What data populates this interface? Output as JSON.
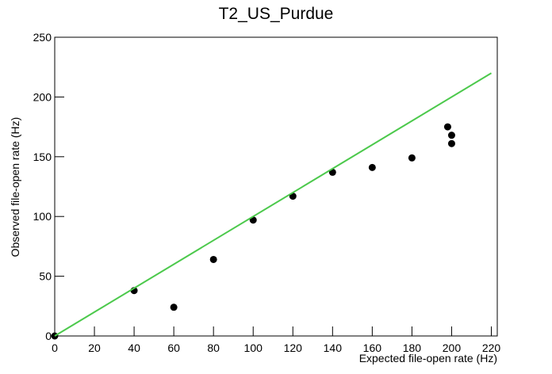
{
  "chart_data": {
    "type": "scatter",
    "title": "T2_US_Purdue",
    "x_label": "Expected file-open rate (Hz)",
    "y_label": "Observed file-open rate (Hz)",
    "series": [
      {
        "style": "markers",
        "color": "#000000",
        "x": [
          0,
          40,
          60,
          80,
          100,
          120,
          140,
          160,
          180,
          198,
          200,
          200
        ],
        "values": [
          0,
          38,
          24,
          64,
          97,
          117,
          137,
          141,
          149,
          175,
          168,
          161
        ]
      },
      {
        "style": "line",
        "color": "#4cc94c",
        "x": [
          0,
          220
        ],
        "values": [
          0,
          220
        ]
      }
    ],
    "xlim": [
      0,
      223
    ],
    "xticks": [
      0,
      20,
      40,
      60,
      80,
      100,
      120,
      140,
      160,
      180,
      200,
      220
    ],
    "ylim": [
      0,
      250
    ],
    "yticks": [
      0,
      50,
      100,
      150,
      200,
      250
    ]
  }
}
